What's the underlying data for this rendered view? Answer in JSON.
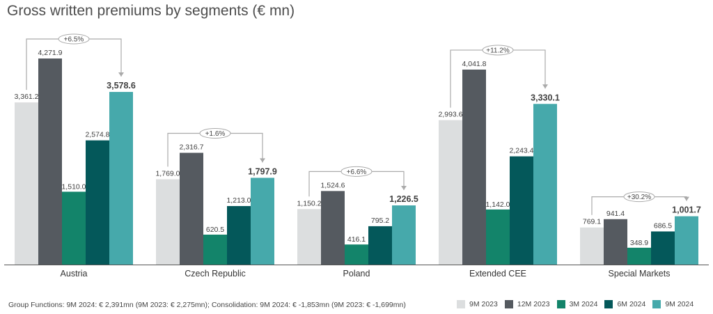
{
  "title": "Gross written premiums by segments (€ mn)",
  "footnote": "Group Functions: 9M 2024: € 2,391mn (9M 2023: € 2,275mn); Consolidation: 9M 2024: € -1,853mn (9M 2023: € -1,699mn)",
  "chart_data": {
    "type": "bar",
    "title": "Gross written premiums by segments (€ mn)",
    "categories": [
      "Austria",
      "Czech Republic",
      "Poland",
      "Extended CEE",
      "Special Markets"
    ],
    "series": [
      {
        "name": "9M 2023",
        "color": "#dcdedf",
        "values": [
          3361.2,
          1769.0,
          1150.2,
          2993.6,
          769.1
        ],
        "labels": [
          "3,361.2",
          "1,769.0",
          "1,150.2",
          "2,993.6",
          "769.1"
        ]
      },
      {
        "name": "12M 2023",
        "color": "#555a60",
        "values": [
          4271.9,
          2316.7,
          1524.6,
          4041.8,
          941.4
        ],
        "labels": [
          "4,271.9",
          "2,316.7",
          "1,524.6",
          "4,041.8",
          "941.4"
        ]
      },
      {
        "name": "3M 2024",
        "color": "#13846a",
        "values": [
          1510.0,
          620.5,
          416.1,
          1142.0,
          348.9
        ],
        "labels": [
          "1,510.0",
          "620.5",
          "416.1",
          "1,142.0",
          "348.9"
        ]
      },
      {
        "name": "6M 2024",
        "color": "#04585a",
        "values": [
          2574.8,
          1213.0,
          795.2,
          2243.4,
          686.5
        ],
        "labels": [
          "2,574.8",
          "1,213.0",
          "795.2",
          "2,243.4",
          "686.5"
        ]
      },
      {
        "name": "9M 2024",
        "color": "#46a9ab",
        "values": [
          3578.6,
          1797.9,
          1226.5,
          3330.1,
          1001.7
        ],
        "labels": [
          "3,578.6",
          "1,797.9",
          "1,226.5",
          "3,330.1",
          "1,001.7"
        ]
      }
    ],
    "changes": [
      "+6.5%",
      "+1.6%",
      "+6.6%",
      "+11.2%",
      "+30.2%"
    ],
    "ylim": [
      0,
      4700
    ],
    "grid": false,
    "legend_position": "bottom-right"
  }
}
